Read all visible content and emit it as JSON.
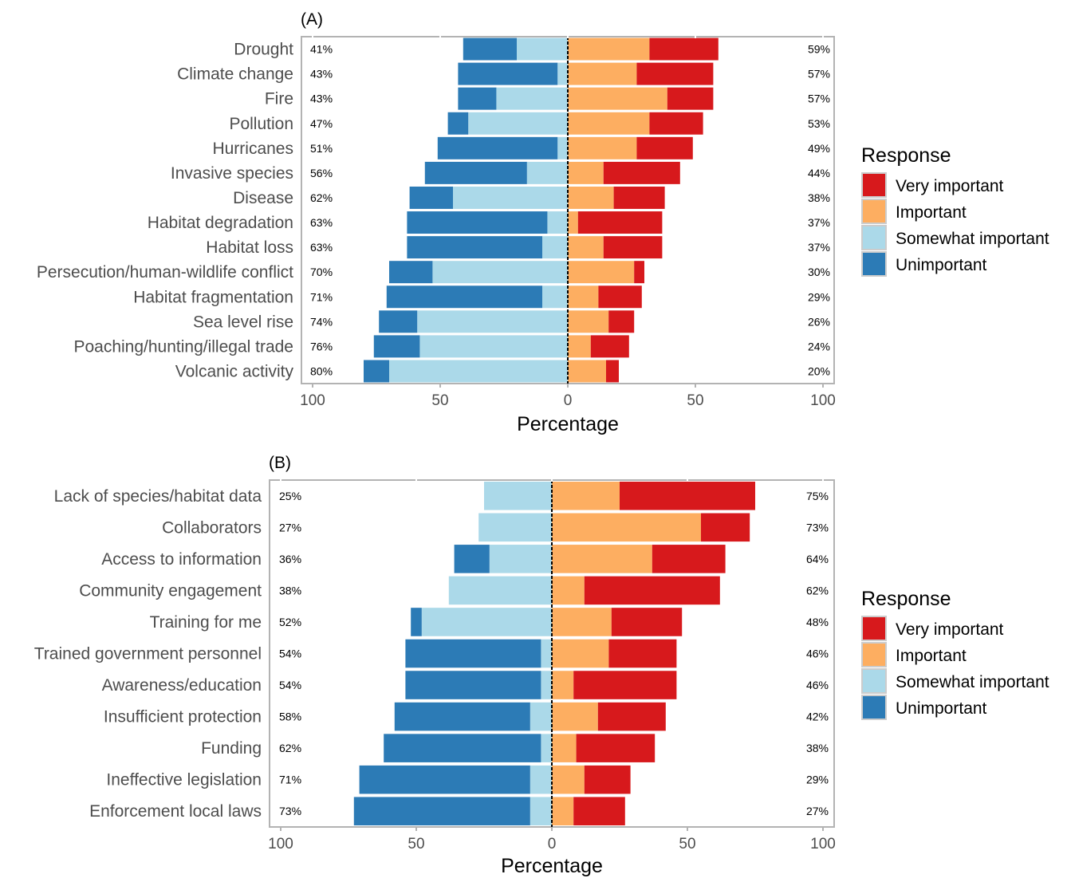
{
  "chart_data": [
    {
      "type": "bar",
      "orientation": "horizontal-diverging",
      "title": "(A)",
      "xlabel": "Percentage",
      "xlim": [
        -100,
        100
      ],
      "xticks": [
        -100,
        -50,
        0,
        50,
        100
      ],
      "xtick_labels": [
        "100",
        "50",
        "0",
        "50",
        "100"
      ],
      "grid": false,
      "legend_title": "Response",
      "legend_position": "right",
      "colors": {
        "Very important": "#d7191c",
        "Important": "#fdae61",
        "Somewhat important": "#abd9e9",
        "Unimportant": "#2c7bb6"
      },
      "categories": [
        "Drought",
        "Climate change",
        "Fire",
        "Pollution",
        "Hurricanes",
        "Invasive species",
        "Disease",
        "Habitat degradation",
        "Habitat loss",
        "Persecution/human-wildlife conflict",
        "Habitat fragmentation",
        "Sea level rise",
        "Poaching/hunting/illegal trade",
        "Volcanic activity"
      ],
      "left_pct_labels": [
        "41%",
        "43%",
        "43%",
        "47%",
        "51%",
        "56%",
        "62%",
        "63%",
        "63%",
        "70%",
        "71%",
        "74%",
        "76%",
        "80%"
      ],
      "right_pct_labels": [
        "59%",
        "57%",
        "57%",
        "53%",
        "49%",
        "44%",
        "38%",
        "37%",
        "37%",
        "30%",
        "29%",
        "26%",
        "24%",
        "20%"
      ],
      "series": [
        {
          "name": "Very important",
          "values": [
            27,
            30,
            18,
            21,
            22,
            30,
            20,
            33,
            23,
            4,
            17,
            10,
            15,
            5
          ]
        },
        {
          "name": "Important",
          "values": [
            32,
            27,
            39,
            32,
            27,
            14,
            18,
            4,
            14,
            26,
            12,
            16,
            9,
            15
          ]
        },
        {
          "name": "Somewhat important",
          "values": [
            20,
            4,
            28,
            39,
            4,
            16,
            45,
            8,
            10,
            53,
            10,
            59,
            58,
            70
          ]
        },
        {
          "name": "Unimportant",
          "values": [
            21,
            39,
            15,
            8,
            47,
            40,
            17,
            55,
            53,
            17,
            61,
            15,
            18,
            10
          ]
        }
      ]
    },
    {
      "type": "bar",
      "orientation": "horizontal-diverging",
      "title": "(B)",
      "xlabel": "Percentage",
      "xlim": [
        -100,
        100
      ],
      "xticks": [
        -100,
        -50,
        0,
        50,
        100
      ],
      "xtick_labels": [
        "100",
        "50",
        "0",
        "50",
        "100"
      ],
      "grid": false,
      "legend_title": "Response",
      "legend_position": "right",
      "colors": {
        "Very important": "#d7191c",
        "Important": "#fdae61",
        "Somewhat important": "#abd9e9",
        "Unimportant": "#2c7bb6"
      },
      "categories": [
        "Lack of species/habitat data",
        "Collaborators",
        "Access to information",
        "Community engagement",
        "Training for me",
        "Trained government personnel",
        "Awareness/education",
        "Insufficient protection",
        "Funding",
        "Ineffective legislation",
        "Enforcement local laws"
      ],
      "left_pct_labels": [
        "25%",
        "27%",
        "36%",
        "38%",
        "52%",
        "54%",
        "54%",
        "58%",
        "62%",
        "71%",
        "73%"
      ],
      "right_pct_labels": [
        "75%",
        "73%",
        "64%",
        "62%",
        "48%",
        "46%",
        "46%",
        "42%",
        "38%",
        "29%",
        "27%"
      ],
      "series": [
        {
          "name": "Very important",
          "values": [
            50,
            18,
            27,
            50,
            26,
            25,
            38,
            25,
            29,
            17,
            19
          ]
        },
        {
          "name": "Important",
          "values": [
            25,
            55,
            37,
            12,
            22,
            21,
            8,
            17,
            9,
            12,
            8
          ]
        },
        {
          "name": "Somewhat important",
          "values": [
            25,
            27,
            23,
            38,
            48,
            4,
            4,
            8,
            4,
            8,
            8
          ]
        },
        {
          "name": "Unimportant",
          "values": [
            0,
            0,
            13,
            0,
            4,
            50,
            50,
            50,
            58,
            63,
            65
          ]
        }
      ]
    }
  ]
}
